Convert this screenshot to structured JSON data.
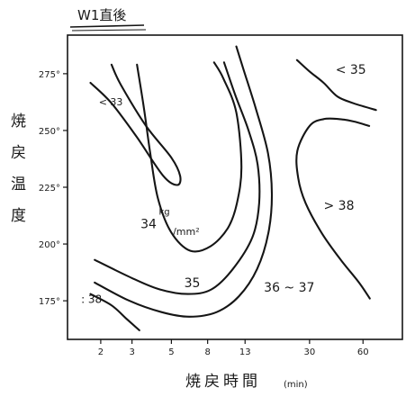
{
  "chart_data": {
    "type": "contour",
    "title": "W1直後",
    "xlabel": "焼戻時間",
    "xlabel_unit": "(min)",
    "ylabel": "焼戻温度",
    "x_scale": "log",
    "x_ticks": [
      {
        "value": 2,
        "label": "2"
      },
      {
        "value": 3,
        "label": "3"
      },
      {
        "value": 5,
        "label": "5"
      },
      {
        "value": 8,
        "label": "8"
      },
      {
        "value": 13,
        "label": "13"
      },
      {
        "value": 30,
        "label": "30"
      },
      {
        "value": 60,
        "label": "60"
      }
    ],
    "y_ticks": [
      {
        "value": 175,
        "label": "175°"
      },
      {
        "value": 200,
        "label": "200°"
      },
      {
        "value": 225,
        "label": "225°"
      },
      {
        "value": 250,
        "label": "250°"
      },
      {
        "value": 275,
        "label": "275°"
      }
    ],
    "xlim": [
      1.3,
      100
    ],
    "ylim": [
      158,
      292
    ],
    "contours": [
      {
        "label": "< 33",
        "points": [
          [
            1.75,
            271
          ],
          [
            2.3,
            262
          ],
          [
            3.2,
            247
          ],
          [
            4.5,
            230
          ],
          [
            5.4,
            226
          ],
          [
            5.6,
            230
          ],
          [
            5.0,
            238
          ],
          [
            3.6,
            252
          ],
          [
            2.6,
            270
          ],
          [
            2.3,
            279
          ]
        ]
      },
      {
        "label": "34 kg/mm²",
        "points": [
          [
            3.2,
            279
          ],
          [
            3.5,
            260
          ],
          [
            3.8,
            240
          ],
          [
            4.2,
            220
          ],
          [
            5.0,
            205
          ],
          [
            6.4,
            197
          ],
          [
            8.3,
            199
          ],
          [
            10.4,
            207
          ],
          [
            11.7,
            218
          ],
          [
            12.4,
            234
          ],
          [
            11.6,
            258
          ],
          [
            9.8,
            273
          ],
          [
            8.7,
            280
          ]
        ]
      },
      {
        "label": "35",
        "points": [
          [
            1.85,
            193
          ],
          [
            3.0,
            185
          ],
          [
            4.3,
            180
          ],
          [
            6.2,
            178
          ],
          [
            8.4,
            180
          ],
          [
            11.1,
            189
          ],
          [
            14.3,
            203
          ],
          [
            15.6,
            218
          ],
          [
            15.3,
            235
          ],
          [
            13.6,
            250
          ],
          [
            11.4,
            266
          ],
          [
            9.9,
            280
          ]
        ]
      },
      {
        "label": "36 ~ 37",
        "points": [
          [
            1.85,
            183
          ],
          [
            2.9,
            175
          ],
          [
            4.4,
            170
          ],
          [
            6.3,
            168
          ],
          [
            9.0,
            170
          ],
          [
            12.0,
            177
          ],
          [
            15.2,
            189
          ],
          [
            17.6,
            205
          ],
          [
            18.4,
            222
          ],
          [
            17.5,
            240
          ],
          [
            14.9,
            260
          ],
          [
            12.6,
            278
          ],
          [
            11.6,
            287
          ]
        ]
      },
      {
        "label": "> 38",
        "points": [
          [
            65,
            252
          ],
          [
            53,
            254
          ],
          [
            44,
            255
          ],
          [
            36,
            255
          ],
          [
            30,
            252
          ],
          [
            25.6,
            241
          ],
          [
            25.9,
            229
          ],
          [
            28.5,
            218
          ],
          [
            35,
            205
          ],
          [
            45,
            193
          ],
          [
            57,
            183
          ],
          [
            65.5,
            176
          ]
        ]
      },
      {
        "label": "< 35",
        "points": [
          [
            25.5,
            281
          ],
          [
            30,
            276
          ],
          [
            36,
            271
          ],
          [
            43,
            265
          ],
          [
            53,
            262
          ],
          [
            71,
            259
          ]
        ]
      },
      {
        "label": "> 38",
        "points": [
          [
            1.75,
            178
          ],
          [
            2.3,
            173
          ],
          [
            2.8,
            167
          ],
          [
            3.3,
            162
          ]
        ]
      }
    ],
    "annotations": [
      {
        "text": "< 33",
        "x": 1.95,
        "y": 261
      },
      {
        "text": "34",
        "x": 3.35,
        "y": 207
      },
      {
        "text": "kg",
        "x": 4.25,
        "y": 213
      },
      {
        "text": "/mm²",
        "x": 5.1,
        "y": 204
      },
      {
        "text": "35",
        "x": 5.9,
        "y": 181
      },
      {
        "text": "36 ~ 37",
        "x": 16.6,
        "y": 179
      },
      {
        "text": "> 38",
        "x": 36,
        "y": 215
      },
      {
        "text": "< 35",
        "x": 42,
        "y": 275
      },
      {
        "text": ": 38",
        "x": 1.55,
        "y": 174
      }
    ]
  }
}
